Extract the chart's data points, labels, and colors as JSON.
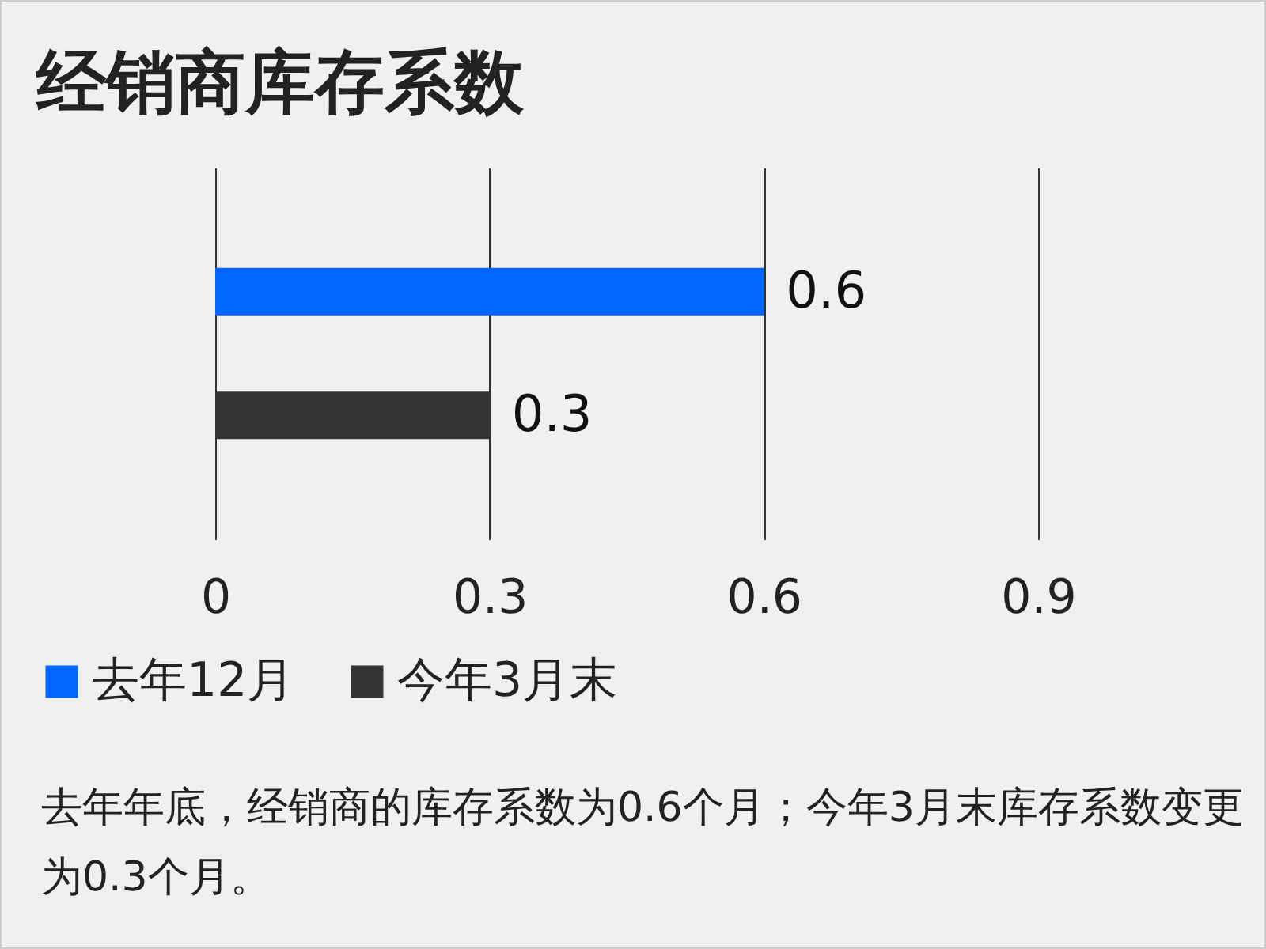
{
  "chart_data": {
    "type": "bar",
    "orientation": "horizontal",
    "title": "经销商库存系数",
    "categories": [
      null,
      null
    ],
    "series": [
      {
        "name": "去年12月",
        "color": "#0066ff",
        "values": [
          0.6,
          null
        ]
      },
      {
        "name": "今年3月末",
        "color": "#333333",
        "values": [
          null,
          0.3
        ]
      }
    ],
    "xlim": [
      0,
      0.9
    ],
    "xticks": [
      0,
      0.3,
      0.6,
      0.9
    ],
    "grid": "x",
    "tick_labels": "x",
    "legend": "bottom",
    "data_labels": true,
    "annotations": [
      "去年年底，经销商的库存系数为0.6个月；今年3月末库存系数变更为0.3个月。"
    ]
  }
}
